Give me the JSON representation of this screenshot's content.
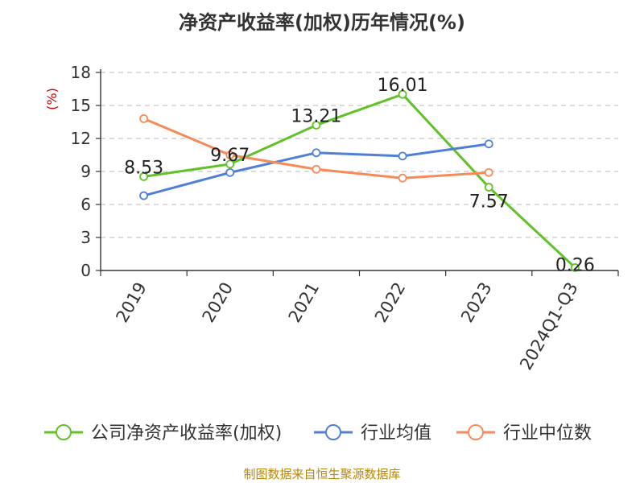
{
  "colors": {
    "roe": "#5fc228",
    "industry_avg": "#4f7fd6",
    "industry_median": "#f68b59"
  },
  "source_note": "制图数据来自恒生聚源数据库",
  "chart_data": {
    "type": "line",
    "title": "净资产收益率(加权)历年情况(%)",
    "ylabel": "(%)",
    "xlabel": "",
    "ylim": [
      0,
      18
    ],
    "yticks": [
      0,
      3,
      6,
      9,
      12,
      15,
      18
    ],
    "grid": true,
    "legend": "bottom",
    "categories": [
      "2019",
      "2020",
      "2021",
      "2022",
      "2023",
      "2024Q1-Q3"
    ],
    "series": [
      {
        "name": "公司净资产收益率(加权)",
        "values": [
          8.53,
          9.67,
          13.21,
          16.01,
          7.57,
          0.26
        ],
        "labels": [
          "8.53",
          "9.67",
          "13.21",
          "16.01",
          "7.57",
          "0.26"
        ]
      },
      {
        "name": "行业均值",
        "values": [
          6.8,
          8.9,
          10.7,
          10.4,
          11.5,
          null
        ]
      },
      {
        "name": "行业中位数",
        "values": [
          13.8,
          10.5,
          9.2,
          8.4,
          8.9,
          null
        ]
      }
    ]
  }
}
